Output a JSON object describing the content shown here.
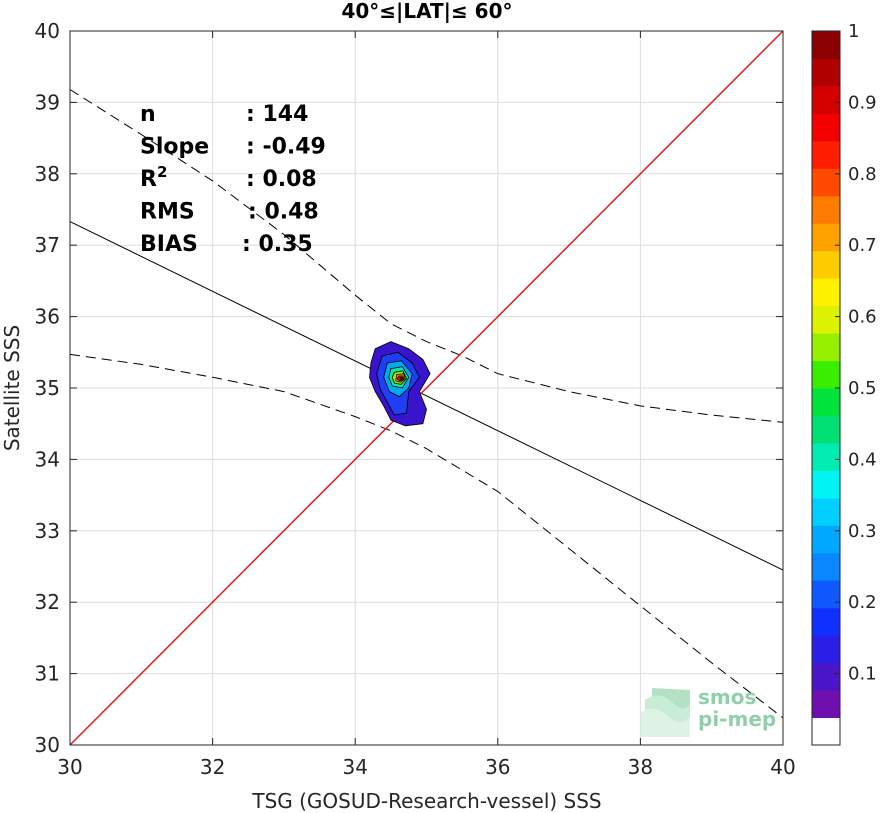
{
  "chart_data": {
    "type": "scatter",
    "title": "40°≤|LAT|≤ 60°",
    "xlabel": "TSG (GOSUD-Research-vessel) SSS",
    "ylabel": "Satellite SSS",
    "xlim": [
      30,
      40
    ],
    "ylim": [
      30,
      40
    ],
    "xticks": [
      "30",
      "32",
      "34",
      "36",
      "38",
      "40"
    ],
    "yticks": [
      "30",
      "31",
      "32",
      "33",
      "34",
      "35",
      "36",
      "37",
      "38",
      "39",
      "40"
    ],
    "grid": true,
    "stats": [
      {
        "label": "n",
        "value": ": 144"
      },
      {
        "label": "Slope",
        "value": ": -0.49"
      },
      {
        "label": "R",
        "sup": "2",
        "value": ": 0.08"
      },
      {
        "label": "RMS",
        "value": ": 0.48"
      },
      {
        "label": "BIAS",
        "value": ": 0.35"
      }
    ],
    "identity_line": {
      "x": [
        30,
        40
      ],
      "y": [
        30,
        40
      ],
      "color": "#e41a1c"
    },
    "regression_line": {
      "x": [
        30,
        40
      ],
      "y": [
        37.33,
        32.45
      ],
      "color": "#000000"
    },
    "confidence_upper": {
      "x": [
        30,
        31,
        32,
        33,
        34,
        34.5,
        35,
        35.5,
        36,
        37,
        38,
        39,
        40
      ],
      "y": [
        39.18,
        38.55,
        37.9,
        37.15,
        36.3,
        35.9,
        35.65,
        35.45,
        35.2,
        34.95,
        34.75,
        34.62,
        34.52
      ]
    },
    "confidence_lower": {
      "x": [
        30,
        31,
        32,
        33,
        34,
        34.5,
        35,
        35.5,
        36,
        37,
        38,
        39,
        40
      ],
      "y": [
        35.47,
        35.33,
        35.15,
        34.95,
        34.6,
        34.4,
        34.15,
        33.85,
        33.55,
        32.75,
        31.95,
        31.15,
        30.38
      ]
    },
    "density_contours": [
      {
        "level": 0.05,
        "color": "#3914cc",
        "points": [
          [
            34.28,
            35.55
          ],
          [
            34.5,
            35.65
          ],
          [
            34.75,
            35.55
          ],
          [
            34.95,
            35.4
          ],
          [
            35.05,
            35.2
          ],
          [
            34.9,
            34.95
          ],
          [
            35.0,
            34.7
          ],
          [
            34.95,
            34.5
          ],
          [
            34.7,
            34.47
          ],
          [
            34.5,
            34.55
          ],
          [
            34.4,
            34.75
          ],
          [
            34.28,
            34.95
          ],
          [
            34.2,
            35.15
          ],
          [
            34.22,
            35.35
          ]
        ]
      },
      {
        "level": 0.15,
        "color": "#1f3ff5",
        "points": [
          [
            34.38,
            35.45
          ],
          [
            34.6,
            35.5
          ],
          [
            34.8,
            35.35
          ],
          [
            34.9,
            35.15
          ],
          [
            34.75,
            34.95
          ],
          [
            34.72,
            34.65
          ],
          [
            34.55,
            34.62
          ],
          [
            34.45,
            34.8
          ],
          [
            34.35,
            34.98
          ],
          [
            34.3,
            35.2
          ]
        ]
      },
      {
        "level": 0.3,
        "color": "#00aaf0",
        "points": [
          [
            34.45,
            35.35
          ],
          [
            34.65,
            35.38
          ],
          [
            34.8,
            35.2
          ],
          [
            34.75,
            35.0
          ],
          [
            34.62,
            34.88
          ],
          [
            34.48,
            34.95
          ],
          [
            34.4,
            35.15
          ]
        ]
      },
      {
        "level": 0.45,
        "color": "#0ee8a0",
        "points": [
          [
            34.5,
            35.27
          ],
          [
            34.66,
            35.3
          ],
          [
            34.75,
            35.15
          ],
          [
            34.66,
            35.0
          ],
          [
            34.52,
            35.03
          ],
          [
            34.47,
            35.15
          ]
        ]
      },
      {
        "level": 0.6,
        "color": "#a8f000",
        "points": [
          [
            34.55,
            35.22
          ],
          [
            34.67,
            35.24
          ],
          [
            34.72,
            35.13
          ],
          [
            34.64,
            35.05
          ],
          [
            34.55,
            35.07
          ],
          [
            34.52,
            35.15
          ]
        ]
      },
      {
        "level": 0.75,
        "color": "#ff9d00",
        "points": [
          [
            34.58,
            35.19
          ],
          [
            34.68,
            35.2
          ],
          [
            34.7,
            35.13
          ],
          [
            34.63,
            35.08
          ],
          [
            34.57,
            35.1
          ]
        ]
      },
      {
        "level": 0.9,
        "color": "#f51a00",
        "points": [
          [
            34.61,
            35.17
          ],
          [
            34.67,
            35.17
          ],
          [
            34.68,
            35.12
          ],
          [
            34.62,
            35.1
          ],
          [
            34.59,
            35.13
          ]
        ]
      },
      {
        "level": 1.0,
        "color": "#990000",
        "points": [
          [
            34.63,
            35.15
          ],
          [
            34.66,
            35.15
          ],
          [
            34.66,
            35.12
          ],
          [
            34.63,
            35.12
          ]
        ]
      }
    ],
    "colorbar": {
      "ticks": [
        "0.1",
        "0.2",
        "0.3",
        "0.4",
        "0.5",
        "0.6",
        "0.7",
        "0.8",
        "0.9",
        "1"
      ],
      "colors": [
        "#ffffff",
        "#6f0faf",
        "#4a15c8",
        "#2a1fe6",
        "#1030ff",
        "#1059ff",
        "#0a86ff",
        "#00a9ff",
        "#00cfff",
        "#00f4f4",
        "#00ecb0",
        "#00e074",
        "#00e23c",
        "#3bee00",
        "#96f000",
        "#dcf200",
        "#fff200",
        "#ffcc00",
        "#ffa200",
        "#ff7a00",
        "#ff4a00",
        "#ff1e00",
        "#f50000",
        "#d40000",
        "#b00000",
        "#8b0000"
      ]
    },
    "logo": {
      "line1": "smos",
      "line2": "pi-mep"
    }
  }
}
